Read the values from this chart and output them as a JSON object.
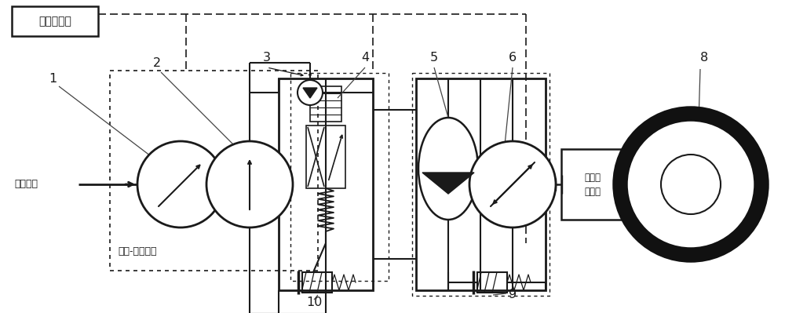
{
  "bg_color": "#ffffff",
  "lc": "#1a1a1a",
  "fig_width": 10.0,
  "fig_height": 3.99,
  "dpi": 100,
  "controller_label": "机载控制器",
  "power_label": "机载电源",
  "motor_pump_label": "电机-泵能源包",
  "reducer_label1": "减速器",
  "reducer_label2": "离合器"
}
